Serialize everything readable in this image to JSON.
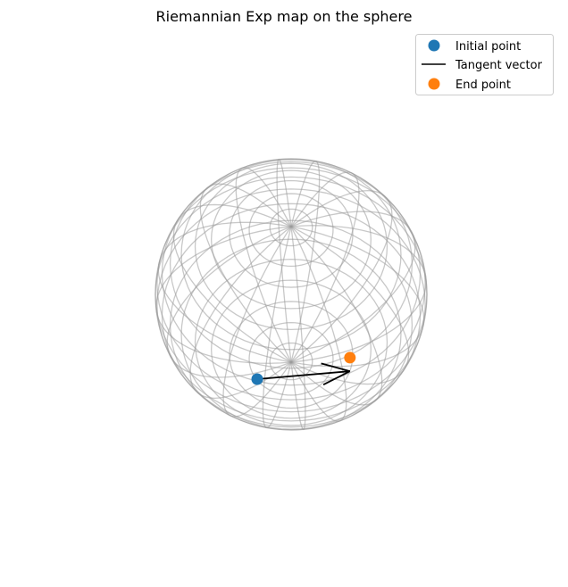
{
  "chart_data": {
    "type": "scatter",
    "title": "Riemannian Exp map on the sphere",
    "projection": "3d",
    "surface": "unit sphere wireframe",
    "axes_visible": false,
    "legend_location": "upper right",
    "series": [
      {
        "name": "Initial point",
        "kind": "point",
        "color": "#1f77b4",
        "x": 0.0,
        "y": -0.5,
        "z": -0.5
      },
      {
        "name": "Tangent vector",
        "kind": "arrow",
        "color": "#000000",
        "origin": [
          0.0,
          -0.5,
          -0.5
        ],
        "vector": [
          0.5,
          0.5,
          -0.2
        ]
      },
      {
        "name": "End point",
        "kind": "point",
        "color": "#ff7f0e",
        "x": 0.5,
        "y": 0.0,
        "z": -0.5
      }
    ]
  }
}
